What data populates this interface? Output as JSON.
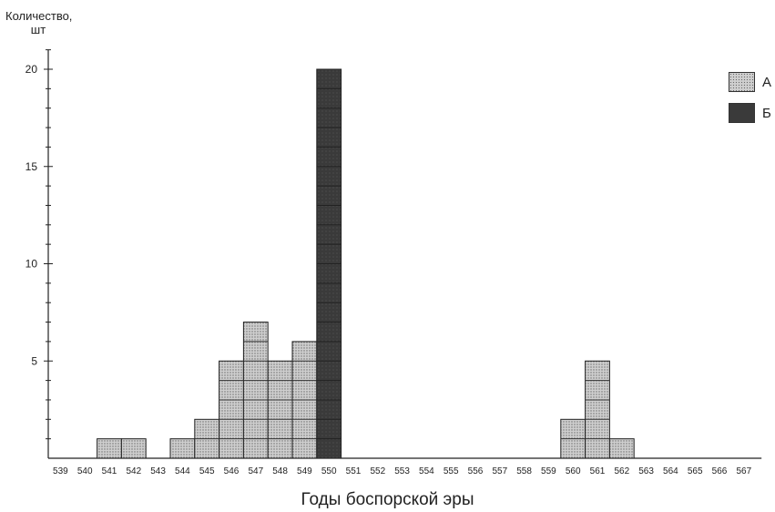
{
  "chart_data": {
    "type": "bar",
    "stacked": true,
    "xlabel": "Годы боспорской эры",
    "ylabel": "Количество, шт",
    "ylabel_lines": [
      "Количество,",
      "шт"
    ],
    "ylim": [
      0,
      21
    ],
    "yticks": [
      5,
      10,
      15,
      20
    ],
    "grid": false,
    "legend_position": "top-right",
    "categories": [
      "539",
      "540",
      "541",
      "542",
      "543",
      "544",
      "545",
      "546",
      "547",
      "548",
      "549",
      "550",
      "551",
      "552",
      "553",
      "554",
      "555",
      "556",
      "557",
      "558",
      "559",
      "560",
      "561",
      "562",
      "563",
      "564",
      "565",
      "566",
      "567"
    ],
    "series": [
      {
        "name": "А",
        "color": "#c8c8c8",
        "pattern": "dotted",
        "values": [
          0,
          0,
          1,
          1,
          0,
          1,
          2,
          5,
          7,
          5,
          6,
          0,
          0,
          0,
          0,
          0,
          0,
          0,
          0,
          0,
          0,
          2,
          5,
          1,
          0,
          0,
          0,
          0,
          0
        ]
      },
      {
        "name": "Б",
        "color": "#3e3e3e",
        "pattern": "solid",
        "values": [
          0,
          0,
          0,
          0,
          0,
          0,
          0,
          0,
          0,
          0,
          0,
          20,
          0,
          0,
          0,
          0,
          0,
          0,
          0,
          0,
          0,
          0,
          0,
          0,
          0,
          0,
          0,
          0,
          0
        ]
      }
    ]
  }
}
